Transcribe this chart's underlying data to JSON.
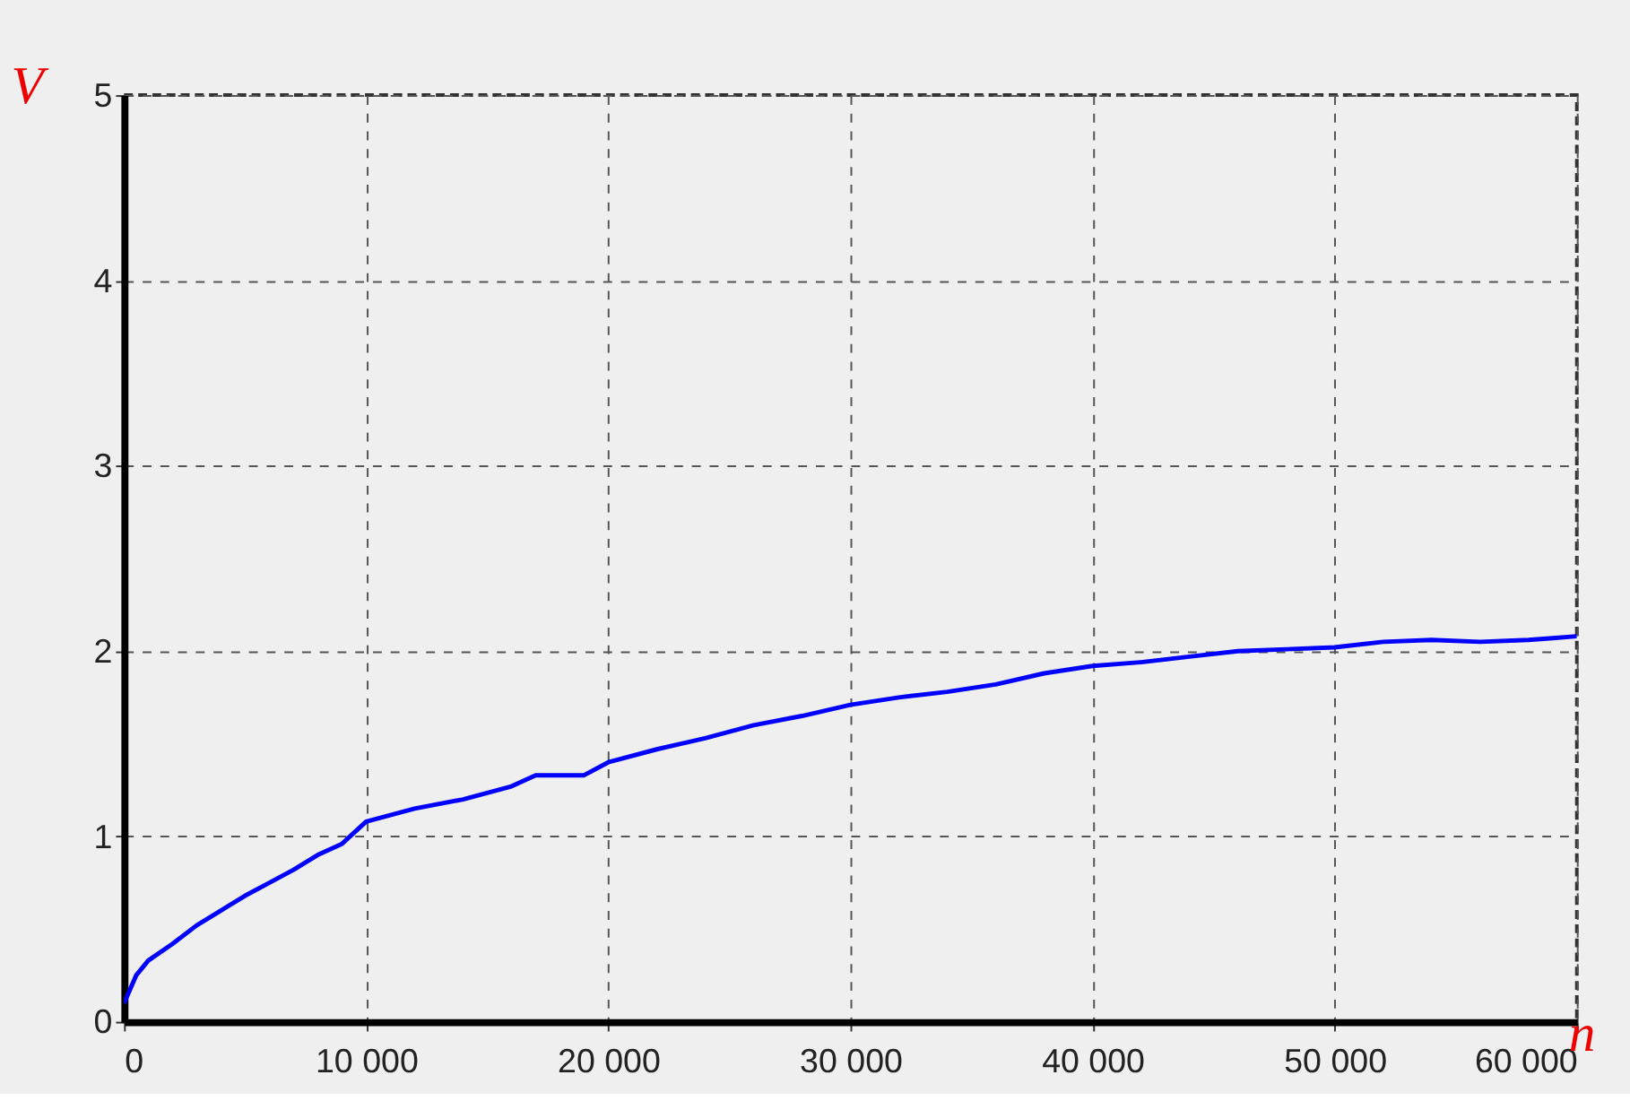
{
  "chart_data": {
    "type": "line",
    "xlabel": "n",
    "ylabel": "V",
    "x": [
      0,
      500,
      1000,
      2000,
      3000,
      4000,
      5000,
      6000,
      7000,
      8000,
      9000,
      10000,
      12000,
      14000,
      16000,
      17000,
      19000,
      20000,
      22000,
      24000,
      26000,
      28000,
      30000,
      32000,
      34000,
      36000,
      38000,
      40000,
      42000,
      44000,
      46000,
      48000,
      50000,
      52000,
      54000,
      56000,
      58000,
      59000,
      60000
    ],
    "series": [
      {
        "color": "#0000ff",
        "values": [
          0.1,
          0.25,
          0.33,
          0.42,
          0.52,
          0.6,
          0.68,
          0.75,
          0.82,
          0.9,
          0.96,
          1.08,
          1.15,
          1.2,
          1.27,
          1.33,
          1.33,
          1.4,
          1.47,
          1.53,
          1.6,
          1.65,
          1.71,
          1.75,
          1.78,
          1.82,
          1.88,
          1.92,
          1.94,
          1.97,
          2.0,
          2.01,
          2.02,
          2.05,
          2.06,
          2.05,
          2.06,
          2.07,
          2.08
        ]
      }
    ],
    "xlim": [
      0,
      60000
    ],
    "ylim": [
      0,
      5
    ],
    "xticks": [
      0,
      {
        "value": 10000,
        "label": "10 000"
      },
      {
        "value": 20000,
        "label": "20 000"
      },
      {
        "value": 30000,
        "label": "30 000"
      },
      {
        "value": 40000,
        "label": "40 000"
      },
      {
        "value": 50000,
        "label": "50 000"
      },
      {
        "value": 60000,
        "label": "60 000"
      }
    ],
    "yticks": [
      0,
      1,
      2,
      3,
      4,
      5
    ],
    "grid": true,
    "marker": "none",
    "line_style": "solid"
  }
}
